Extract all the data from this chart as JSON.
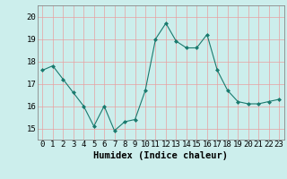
{
  "x": [
    0,
    1,
    2,
    3,
    4,
    5,
    6,
    7,
    8,
    9,
    10,
    11,
    12,
    13,
    14,
    15,
    16,
    17,
    18,
    19,
    20,
    21,
    22,
    23
  ],
  "y": [
    17.6,
    17.8,
    17.2,
    16.6,
    16.0,
    15.1,
    16.0,
    14.9,
    15.3,
    15.4,
    16.7,
    19.0,
    19.7,
    18.9,
    18.6,
    18.6,
    19.2,
    17.6,
    16.7,
    16.2,
    16.1,
    16.1,
    16.2,
    16.3
  ],
  "line_color": "#1a7a6e",
  "marker": "D",
  "marker_size": 2.0,
  "bg_color": "#cceeec",
  "grid_color_h": "#e8a0a0",
  "grid_color_v": "#e8a0a0",
  "xlabel": "Humidex (Indice chaleur)",
  "ylim": [
    14.5,
    20.5
  ],
  "yticks": [
    15,
    16,
    17,
    18,
    19,
    20
  ],
  "xticks": [
    0,
    1,
    2,
    3,
    4,
    5,
    6,
    7,
    8,
    9,
    10,
    11,
    12,
    13,
    14,
    15,
    16,
    17,
    18,
    19,
    20,
    21,
    22,
    23
  ],
  "xlabel_fontsize": 7.5,
  "tick_fontsize": 6.5,
  "xlim": [
    -0.5,
    23.5
  ]
}
